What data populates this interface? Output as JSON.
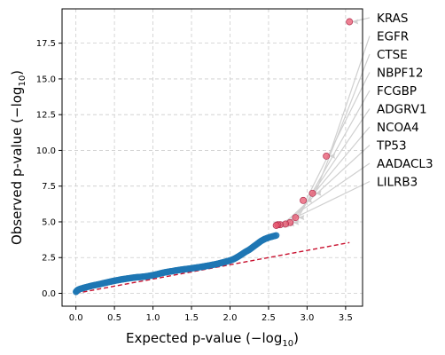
{
  "chart_data": {
    "type": "scatter",
    "xlabel_main": "Expected p-value (−log",
    "xlabel_sub": "10",
    "xlabel_end": ")",
    "ylabel_main": "Observed p-value (−log",
    "ylabel_sub": "10",
    "ylabel_end": ")",
    "xlim": [
      -0.18,
      3.72
    ],
    "ylim": [
      -0.9,
      19.9
    ],
    "xticks": [
      "0.0",
      "0.5",
      "1.0",
      "1.5",
      "2.0",
      "2.5",
      "3.0",
      "3.5"
    ],
    "yticks": [
      "0.0",
      "2.5",
      "5.0",
      "7.5",
      "10.0",
      "12.5",
      "15.0",
      "17.5"
    ],
    "grid": true,
    "reference_line": {
      "from": [
        0.0,
        0.0
      ],
      "to": [
        3.55,
        3.55
      ],
      "color": "#c8102e",
      "style": "dashed"
    },
    "background_curve": [
      [
        0.0,
        0.1
      ],
      [
        0.02,
        0.22
      ],
      [
        0.05,
        0.3
      ],
      [
        0.1,
        0.38
      ],
      [
        0.15,
        0.45
      ],
      [
        0.2,
        0.52
      ],
      [
        0.25,
        0.58
      ],
      [
        0.3,
        0.63
      ],
      [
        0.35,
        0.7
      ],
      [
        0.4,
        0.76
      ],
      [
        0.45,
        0.82
      ],
      [
        0.5,
        0.88
      ],
      [
        0.55,
        0.93
      ],
      [
        0.6,
        0.98
      ],
      [
        0.65,
        1.02
      ],
      [
        0.7,
        1.06
      ],
      [
        0.75,
        1.1
      ],
      [
        0.8,
        1.13
      ],
      [
        0.85,
        1.15
      ],
      [
        0.9,
        1.18
      ],
      [
        0.95,
        1.22
      ],
      [
        1.0,
        1.27
      ],
      [
        1.05,
        1.33
      ],
      [
        1.1,
        1.4
      ],
      [
        1.15,
        1.46
      ],
      [
        1.2,
        1.51
      ],
      [
        1.25,
        1.55
      ],
      [
        1.3,
        1.6
      ],
      [
        1.35,
        1.64
      ],
      [
        1.4,
        1.68
      ],
      [
        1.45,
        1.71
      ],
      [
        1.5,
        1.75
      ],
      [
        1.55,
        1.79
      ],
      [
        1.6,
        1.83
      ],
      [
        1.65,
        1.87
      ],
      [
        1.7,
        1.92
      ],
      [
        1.75,
        1.97
      ],
      [
        1.8,
        2.02
      ],
      [
        1.85,
        2.08
      ],
      [
        1.9,
        2.15
      ],
      [
        1.95,
        2.22
      ],
      [
        2.0,
        2.3
      ],
      [
        2.05,
        2.4
      ],
      [
        2.1,
        2.55
      ],
      [
        2.15,
        2.72
      ],
      [
        2.2,
        2.9
      ],
      [
        2.25,
        3.05
      ],
      [
        2.3,
        3.25
      ],
      [
        2.35,
        3.45
      ],
      [
        2.4,
        3.65
      ],
      [
        2.45,
        3.8
      ],
      [
        2.5,
        3.9
      ],
      [
        2.55,
        3.98
      ],
      [
        2.6,
        4.05
      ]
    ],
    "highlighted_points": [
      {
        "gene": "KRAS",
        "x": 3.55,
        "y": 19.0
      },
      {
        "gene": "EGFR",
        "x": 3.25,
        "y": 9.6
      },
      {
        "gene": "CTSE",
        "x": 3.07,
        "y": 7.0
      },
      {
        "gene": "NBPF12",
        "x": 2.95,
        "y": 6.5
      },
      {
        "gene": "FCGBP",
        "x": 2.85,
        "y": 5.3
      },
      {
        "gene": "ADGRV1",
        "x": 2.78,
        "y": 4.95
      },
      {
        "gene": "NCOA4",
        "x": 2.72,
        "y": 4.85
      },
      {
        "gene": "TP53",
        "x": 2.65,
        "y": 4.8
      },
      {
        "gene": "AADACL3",
        "x": 2.62,
        "y": 4.8
      },
      {
        "gene": "LILRB3",
        "x": 2.6,
        "y": 4.75
      }
    ],
    "colors": {
      "background_points": "#1f77b4",
      "highlight_points": "#e8556d",
      "highlight_edge": "#b03050",
      "grid": "#cccccc",
      "leader_lines": "#d0d0d0"
    }
  }
}
